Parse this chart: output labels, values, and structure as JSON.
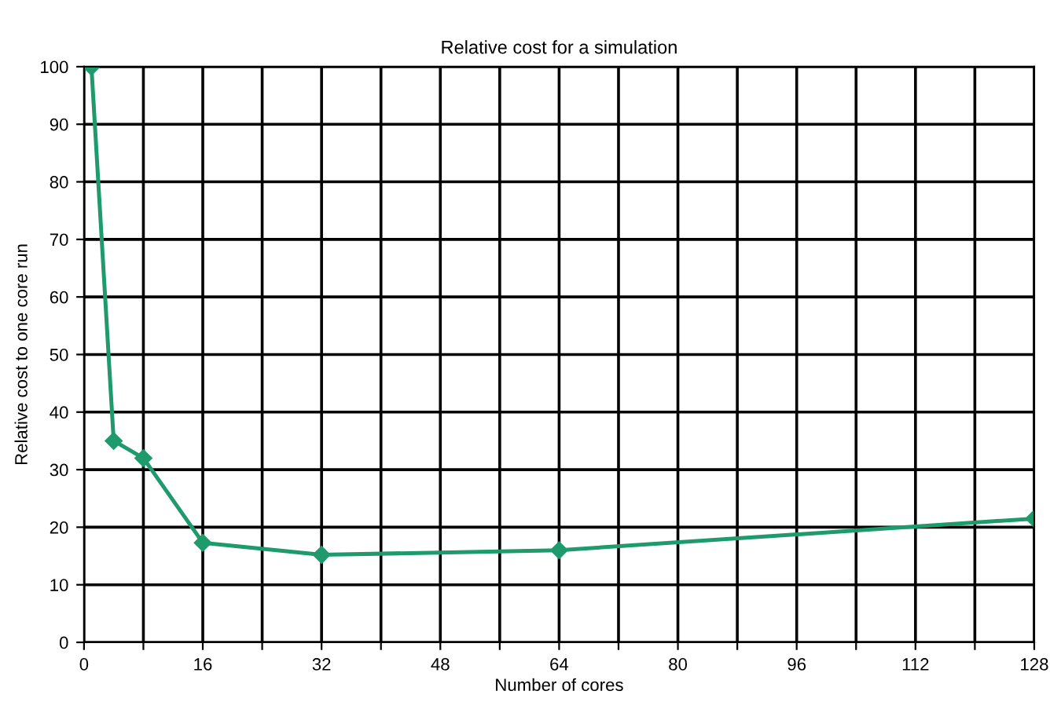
{
  "chart_data": {
    "type": "line",
    "title": "Relative cost for a simulation",
    "xlabel": "Number of cores",
    "ylabel": "Relative cost to one core run",
    "x": [
      1,
      4,
      8,
      16,
      32,
      64,
      128
    ],
    "series": [
      {
        "color": "#1f9a6c",
        "values": [
          100,
          35,
          32,
          17.3,
          15.2,
          16,
          21.5
        ]
      }
    ],
    "xlim": [
      0,
      128
    ],
    "xticks": [
      0,
      {
        "value": 8,
        "label": null
      },
      16,
      {
        "value": 24,
        "label": null
      },
      32,
      {
        "value": 40,
        "label": null
      },
      48,
      {
        "value": 56,
        "label": null
      },
      64,
      {
        "value": 72,
        "label": null
      },
      80,
      {
        "value": 88,
        "label": null
      },
      96,
      {
        "value": 104,
        "label": null
      },
      112,
      {
        "value": 120,
        "label": null
      },
      128
    ],
    "ylim": [
      0,
      100
    ],
    "yticks": [
      0,
      10,
      20,
      30,
      40,
      50,
      60,
      70,
      80,
      90,
      100
    ],
    "grid": true,
    "marker": "diamond",
    "line_style": "solid",
    "legend": false
  }
}
